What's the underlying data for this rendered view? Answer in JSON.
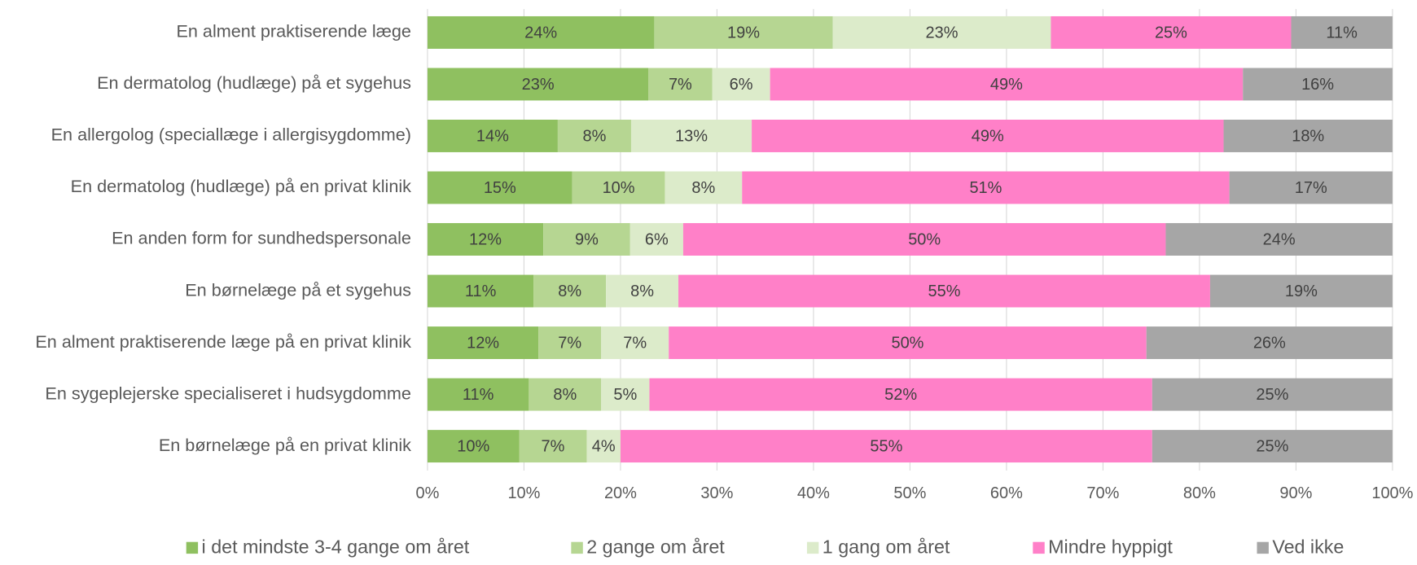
{
  "chart_data": {
    "type": "stacked_barh",
    "categories": [
      "En alment praktiserende læge",
      "En dermatolog (hudlæge) på et sygehus",
      "En allergolog (speciallæge i allergisygdomme)",
      "En dermatolog (hudlæge) på en privat klinik",
      "En anden form for sundhedspersonale",
      "En børnelæge på et sygehus",
      "En alment praktiserende læge på en privat klinik",
      "En sygeplejerske specialiseret i hudsygdomme",
      "En børnelæge på en privat klinik"
    ],
    "series": [
      {
        "name": "i det mindste 3-4 gange om året",
        "color": "#8fc060",
        "values": [
          23.5,
          22.9,
          13.5,
          15.0,
          12.0,
          11.0,
          11.5,
          10.5,
          9.5
        ],
        "value_labels": [
          "24%",
          "23%",
          "14%",
          "15%",
          "12%",
          "11%",
          "12%",
          "11%",
          "10%"
        ]
      },
      {
        "name": "2 gange om året",
        "color": "#b6d692",
        "values": [
          18.5,
          6.6,
          7.6,
          9.6,
          9.0,
          7.5,
          6.5,
          7.5,
          7.0
        ],
        "value_labels": [
          "19%",
          "7%",
          "8%",
          "10%",
          "9%",
          "8%",
          "7%",
          "8%",
          "7%"
        ]
      },
      {
        "name": "1 gang om året",
        "color": "#dcebca",
        "values": [
          22.6,
          6.0,
          12.5,
          8.0,
          5.5,
          7.5,
          7.0,
          5.0,
          3.5
        ],
        "value_labels": [
          "23%",
          "6%",
          "13%",
          "8%",
          "6%",
          "8%",
          "7%",
          "5%",
          "4%"
        ]
      },
      {
        "name": "Mindre hyppigt",
        "color": "#ff80c8",
        "values": [
          24.9,
          49.0,
          48.9,
          50.5,
          50.0,
          55.1,
          49.5,
          52.1,
          55.1
        ],
        "value_labels": [
          "25%",
          "49%",
          "49%",
          "51%",
          "50%",
          "55%",
          "50%",
          "52%",
          "55%"
        ]
      },
      {
        "name": "Ved ikke",
        "color": "#a6a6a6",
        "values": [
          10.5,
          15.5,
          17.5,
          16.9,
          23.5,
          18.9,
          25.5,
          24.9,
          24.9
        ],
        "value_labels": [
          "11%",
          "16%",
          "18%",
          "17%",
          "24%",
          "19%",
          "26%",
          "25%",
          "25%"
        ]
      }
    ],
    "xlim": [
      0,
      100
    ],
    "xticks": [
      {
        "value": 0,
        "label": "0%"
      },
      {
        "value": 10,
        "label": "10%"
      },
      {
        "value": 20,
        "label": "20%"
      },
      {
        "value": 30,
        "label": "30%"
      },
      {
        "value": 40,
        "label": "40%"
      },
      {
        "value": 50,
        "label": "50%"
      },
      {
        "value": 60,
        "label": "60%"
      },
      {
        "value": 70,
        "label": "70%"
      },
      {
        "value": 80,
        "label": "80%"
      },
      {
        "value": 90,
        "label": "90%"
      },
      {
        "value": 100,
        "label": "100%"
      }
    ],
    "grid": true,
    "legend": "bottom"
  }
}
